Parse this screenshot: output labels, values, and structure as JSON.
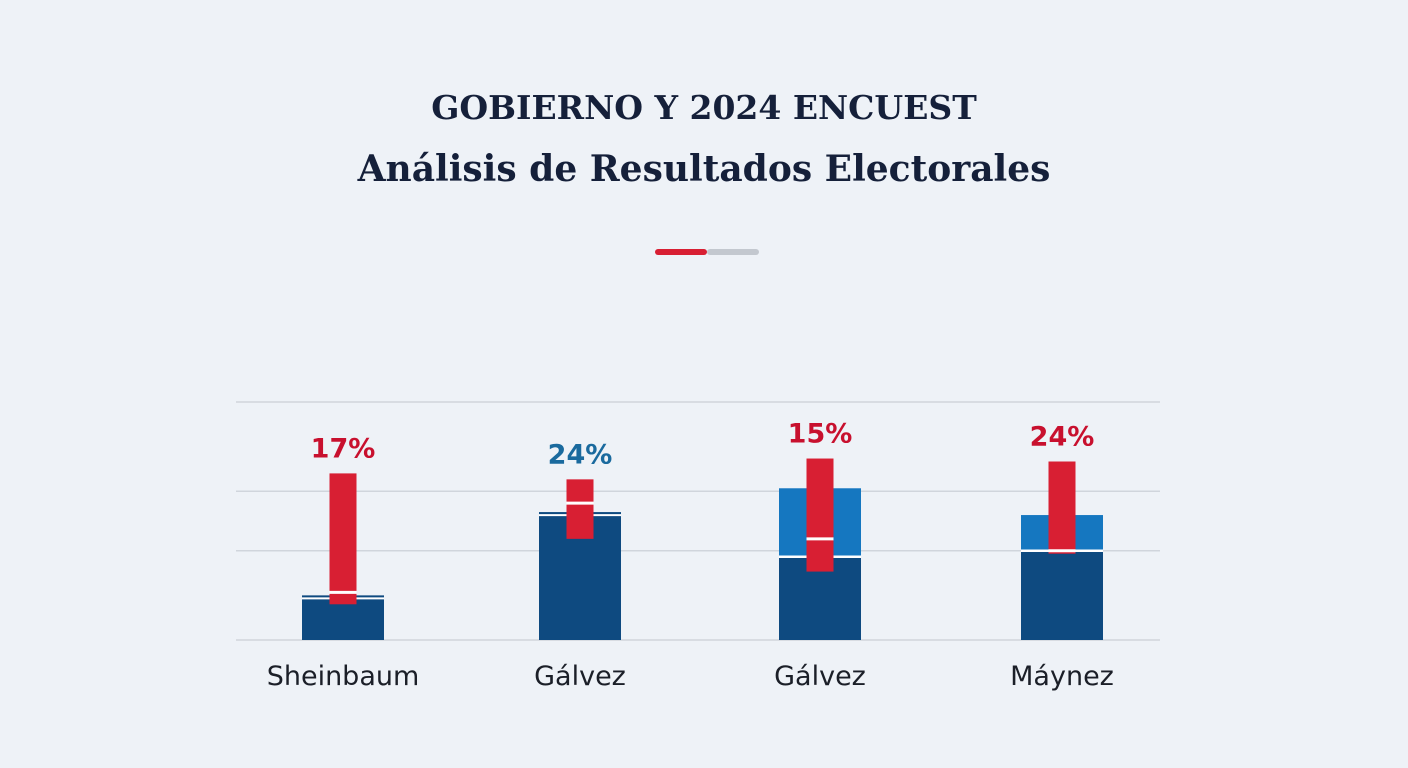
{
  "header": {
    "title": "GOBIERNO Y 2024 ENCUEST",
    "subtitle": "Análisis de Resultados Electorales"
  },
  "colors": {
    "background": "#eef2f7",
    "dark_blue": "#0e4a80",
    "light_blue": "#1577c0",
    "red": "#d81f33",
    "blue_label": "#1a6a9e",
    "red_label": "#c8102e",
    "grid": "#d0d5dc",
    "divider_gray": "#c3c8cf"
  },
  "chart_data": {
    "type": "bar",
    "title": "Análisis de Resultados Electorales",
    "xlabel": "",
    "ylabel": "",
    "ylim": [
      0,
      80
    ],
    "gridlines": [
      0,
      30,
      50,
      80
    ],
    "legend": "none",
    "categories": [
      "Sheinbaum",
      "Gálvez",
      "Gálvez",
      "Máynez"
    ],
    "series": [
      {
        "name": "base",
        "color": "#0e4a80",
        "values": [
          15,
          43,
          28,
          30
        ]
      },
      {
        "name": "upper",
        "color": "#1577c0",
        "values": [
          0,
          0,
          23,
          12
        ]
      },
      {
        "name": "range",
        "color": "#d81f33",
        "ranges": [
          [
            12,
            56
          ],
          [
            34,
            54
          ],
          [
            23,
            61
          ],
          [
            29,
            60
          ]
        ]
      }
    ],
    "markers": [
      16,
      46,
      34,
      30
    ],
    "data_labels": [
      {
        "text": "17%",
        "color": "#c8102e"
      },
      {
        "text": "24%",
        "color": "#1a6a9e"
      },
      {
        "text": "15%",
        "color": "#c8102e"
      },
      {
        "text": "24%",
        "color": "#c8102e"
      }
    ]
  }
}
